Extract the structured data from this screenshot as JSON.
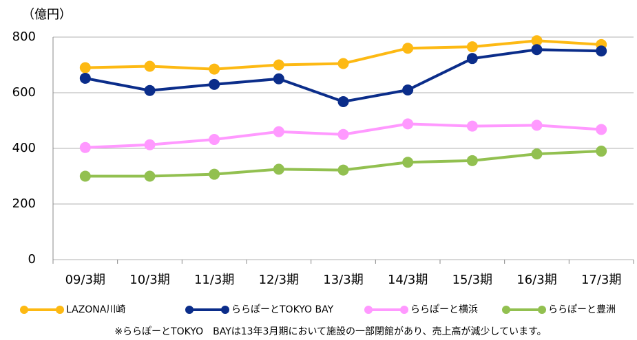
{
  "chart_data": {
    "type": "line",
    "y_axis_label": "（億円）",
    "categories": [
      "09/3期",
      "10/3期",
      "11/3期",
      "12/3期",
      "13/3期",
      "14/3期",
      "15/3期",
      "16/3期",
      "17/3期"
    ],
    "series": [
      {
        "name": "LAZONA川崎",
        "color": "#fdb913",
        "values": [
          690,
          695,
          685,
          700,
          705,
          760,
          765,
          787,
          773
        ]
      },
      {
        "name": "ららぽーとTOKYO BAY",
        "color": "#0b2d8a",
        "values": [
          652,
          608,
          630,
          650,
          568,
          610,
          723,
          755,
          750
        ]
      },
      {
        "name": "ららぽーと横浜",
        "color": "#ff99ff",
        "values": [
          403,
          413,
          432,
          460,
          450,
          488,
          480,
          483,
          468
        ]
      },
      {
        "name": "ららぽーと豊洲",
        "color": "#92c050",
        "values": [
          300,
          300,
          307,
          325,
          322,
          350,
          356,
          380,
          390
        ]
      }
    ],
    "ylim": [
      0,
      800
    ],
    "yticks": [
      0,
      200,
      400,
      600,
      800
    ],
    "grid": true,
    "legend": "bottom",
    "footnote": "※ららぽーとTOKYO　BAYは13年3月期において施設の一部閉館があり、売上高が減少しています。"
  }
}
